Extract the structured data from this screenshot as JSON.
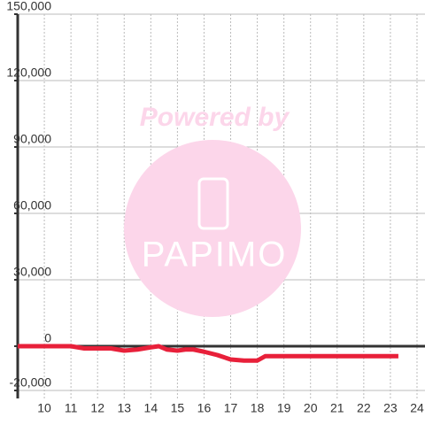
{
  "chart_data": {
    "type": "line",
    "watermark": [
      "Powered by",
      "PAPIMO"
    ],
    "x": [
      9,
      10,
      11,
      11.5,
      12,
      12.5,
      13,
      13.5,
      14,
      14.3,
      14.6,
      15,
      15.3,
      15.6,
      16,
      16.5,
      17,
      17.5,
      18,
      18.3,
      19,
      20,
      21,
      22,
      23,
      23.3
    ],
    "series": [
      {
        "color": "#e8203a",
        "values": [
          0,
          0,
          0,
          -1000,
          -1000,
          -1000,
          -2000,
          -1500,
          -500,
          0,
          -1500,
          -2000,
          -1500,
          -1500,
          -2500,
          -4000,
          -6000,
          -6500,
          -6500,
          -4500,
          -4500,
          -4500,
          -4500,
          -4500,
          -4500,
          -4500
        ]
      }
    ],
    "xlim": [
      9,
      24.3
    ],
    "xticks": [
      10,
      11,
      12,
      13,
      14,
      15,
      16,
      17,
      18,
      19,
      20,
      21,
      22,
      23,
      24
    ],
    "ylim": [
      -23600,
      150000
    ],
    "yticks": [
      {
        "value": -20000,
        "label": "-20,000"
      },
      0,
      {
        "value": 30000,
        "label": "30,000"
      },
      {
        "value": 60000,
        "label": "60,000"
      },
      {
        "value": 90000,
        "label": "90,000"
      },
      {
        "value": 120000,
        "label": "120,000"
      },
      {
        "value": 150000,
        "label": "150,000"
      }
    ],
    "grid": true
  }
}
